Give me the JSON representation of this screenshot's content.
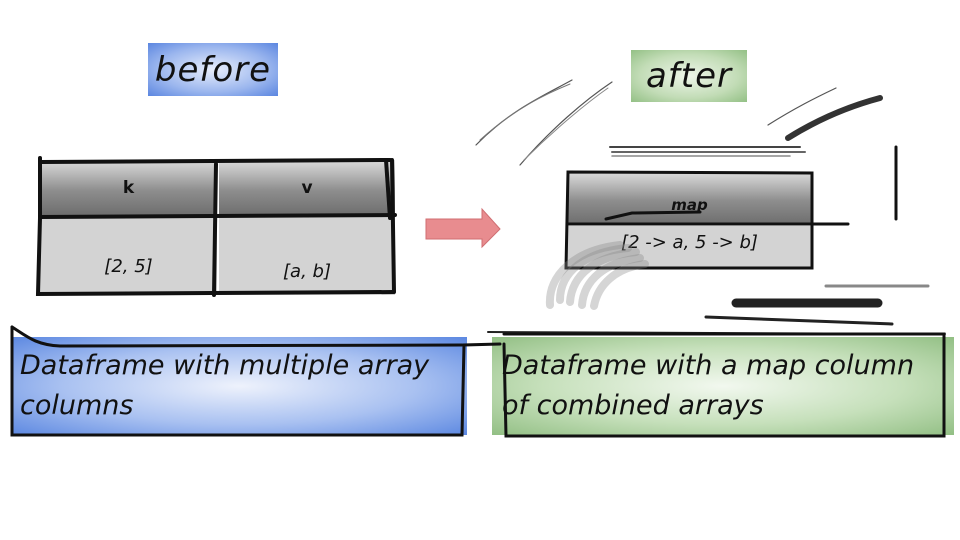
{
  "before": {
    "title": "before",
    "table": {
      "headers": [
        "k",
        "v"
      ],
      "row": [
        "[2, 5]",
        "[a, b]"
      ]
    },
    "caption_line1": "Dataframe with multiple array",
    "caption_line2": "columns"
  },
  "after": {
    "title": "after",
    "table": {
      "header": "map",
      "row": "[2 -> a, 5 -> b]"
    },
    "caption_line1": "Dataframe with a map column",
    "caption_line2": "of combined arrays"
  },
  "arrow": {
    "color": "#e07f82",
    "direction": "right-arrow"
  },
  "colors": {
    "before_accent": "#5b86e0",
    "after_accent": "#93c085",
    "header_gray": "#8e8e8e",
    "cell_gray": "#d3d3d3"
  }
}
